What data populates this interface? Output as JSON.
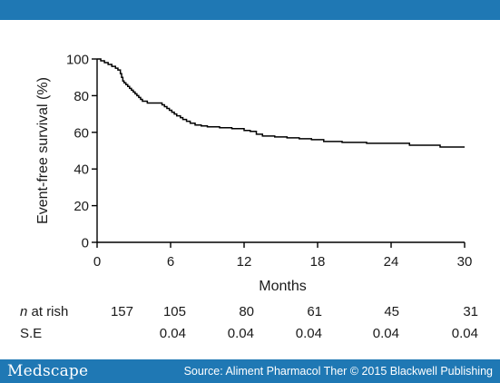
{
  "colors": {
    "brand_bar": "#1F78B4",
    "curve": "#000000",
    "axis": "#000000",
    "text": "#1a1a1a"
  },
  "footer": {
    "logo": "Medscape",
    "source": "Source: Aliment Pharmacol Ther © 2015 Blackwell Publishing"
  },
  "chart_data": {
    "type": "line",
    "title": "",
    "xlabel": "Months",
    "ylabel": "Event-free survival (%)",
    "xlim": [
      0,
      30
    ],
    "ylim": [
      0,
      100
    ],
    "xticks": [
      0,
      6,
      12,
      18,
      24,
      30
    ],
    "yticks": [
      0,
      20,
      40,
      60,
      80,
      100
    ],
    "grid": false,
    "legend": "none",
    "series": [
      {
        "step": true,
        "x": [
          0,
          0.3,
          0.6,
          0.9,
          1.2,
          1.5,
          1.7,
          1.9,
          2.0,
          2.1,
          2.2,
          2.35,
          2.5,
          2.65,
          2.8,
          2.95,
          3.1,
          3.25,
          3.4,
          3.55,
          3.7,
          3.9,
          4.1,
          4.4,
          4.7,
          5.0,
          5.3,
          5.5,
          5.7,
          5.9,
          6.1,
          6.3,
          6.5,
          6.8,
          7.0,
          7.3,
          7.6,
          8.0,
          8.5,
          9.0,
          10.0,
          11.0,
          12.0,
          12.5,
          13.0,
          13.5,
          14.5,
          15.5,
          16.5,
          17.5,
          18.5,
          20.0,
          22.0,
          24.0,
          25.5,
          27.0,
          28.0,
          29.0,
          30.0
        ],
        "y": [
          100,
          99,
          98,
          97,
          96,
          95,
          94,
          92,
          90,
          88,
          87,
          86,
          85,
          84,
          83,
          82,
          81,
          80,
          79,
          78,
          77,
          77,
          76,
          76,
          76,
          76,
          75,
          74,
          73,
          72,
          71,
          70,
          69,
          68,
          67,
          66,
          65,
          64,
          63.5,
          63,
          62.5,
          62,
          61,
          60.5,
          59,
          58,
          57.5,
          57,
          56.5,
          56,
          55,
          54.5,
          54,
          54,
          53,
          53,
          52,
          52,
          52
        ]
      }
    ],
    "risk_table": {
      "n_label_italic": "n",
      "n_label_rest": " at rish",
      "n_values": [
        "157",
        "105",
        "80",
        "61",
        "45",
        "31"
      ],
      "se_label": "S.E",
      "se_values": [
        "",
        "0.04",
        "0.04",
        "0.04",
        "0.04",
        "0.04"
      ]
    }
  }
}
